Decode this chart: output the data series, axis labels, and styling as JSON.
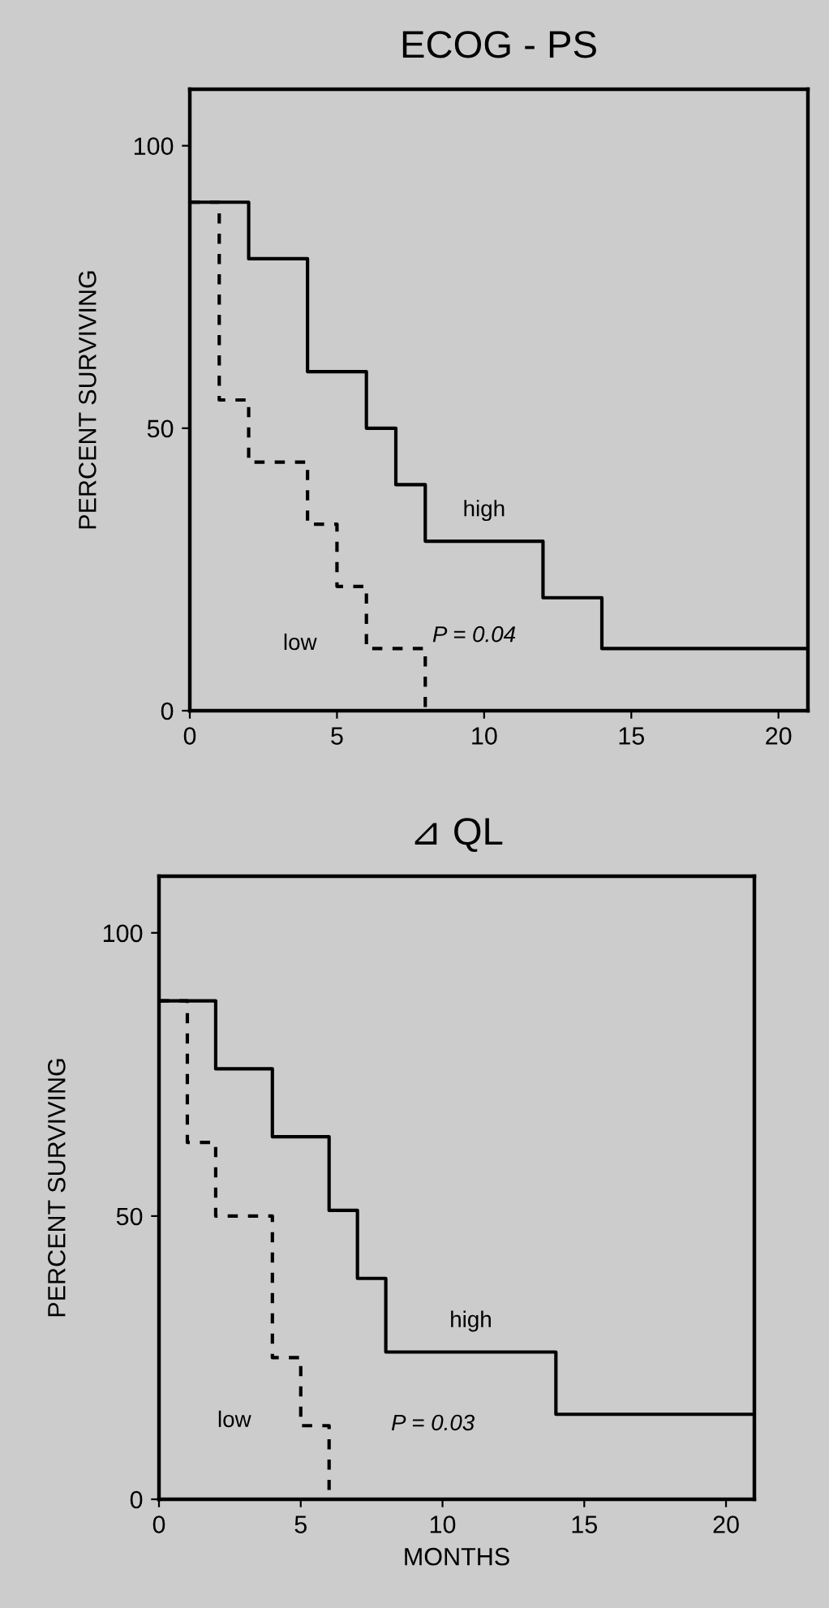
{
  "chart_data": [
    {
      "type": "step",
      "title": "ECOG - PS",
      "ylabel": "PERCENT SURVIVING",
      "xlim": [
        0,
        21
      ],
      "ylim": [
        0,
        110
      ],
      "xticks": [
        0,
        5,
        10,
        15,
        20
      ],
      "yticks": [
        0,
        50,
        100
      ],
      "grid": false,
      "legend": false,
      "marker": "none",
      "series": [
        {
          "name": "high",
          "color": "#000000",
          "line_style": "solid",
          "x": [
            0,
            2,
            4,
            6,
            7,
            8,
            12,
            14,
            21
          ],
          "values": [
            90,
            80,
            60,
            50,
            40,
            30,
            20,
            11,
            11
          ]
        },
        {
          "name": "low",
          "color": "#000000",
          "line_style": "dashed",
          "x": [
            0,
            1,
            2,
            4,
            5,
            6,
            8
          ],
          "values": [
            90,
            55,
            44,
            33,
            22,
            11,
            0
          ]
        }
      ],
      "annotations": [
        "P = 0.04"
      ]
    },
    {
      "type": "step",
      "title": "⊿ QL",
      "xlabel": "MONTHS",
      "ylabel": "PERCENT SURVIVING",
      "xlim": [
        0,
        21
      ],
      "ylim": [
        0,
        110
      ],
      "xticks": [
        0,
        5,
        10,
        15,
        20
      ],
      "yticks": [
        0,
        50,
        100
      ],
      "grid": false,
      "legend": false,
      "marker": "none",
      "series": [
        {
          "name": "high",
          "color": "#000000",
          "line_style": "solid",
          "x": [
            0,
            2,
            4,
            6,
            7,
            8,
            14,
            21
          ],
          "values": [
            88,
            76,
            64,
            51,
            39,
            26,
            15,
            15
          ]
        },
        {
          "name": "low",
          "color": "#000000",
          "line_style": "dashed",
          "x": [
            0,
            1,
            2,
            4,
            5,
            6
          ],
          "values": [
            88,
            63,
            50,
            25,
            13,
            0
          ]
        }
      ],
      "annotations": [
        "P = 0.03"
      ]
    }
  ]
}
